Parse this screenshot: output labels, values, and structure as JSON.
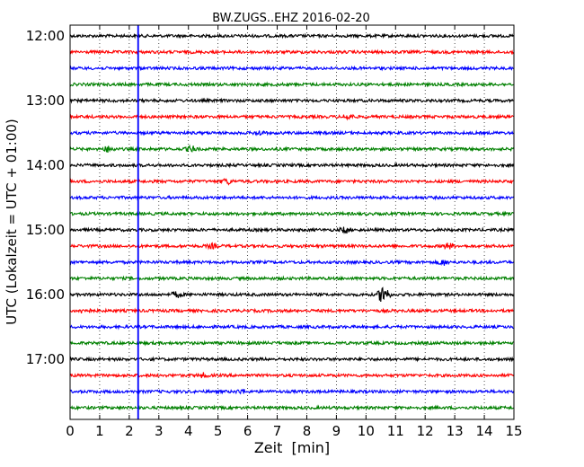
{
  "chart_data": {
    "type": "line",
    "title": "BW.ZUGS..EHZ 2016-02-20",
    "xlabel": "Zeit  [min]",
    "ylabel": "UTC (Lokalzeit = UTC + 01:00)",
    "xlim": [
      0,
      15
    ],
    "x_ticks": [
      "0",
      "1",
      "2",
      "3",
      "4",
      "5",
      "6",
      "7",
      "8",
      "9",
      "10",
      "11",
      "12",
      "13",
      "14",
      "15"
    ],
    "y_ticks": [
      "12:00",
      "13:00",
      "14:00",
      "15:00",
      "16:00",
      "17:00"
    ],
    "grid": "vertical-dotted",
    "trace_colors": [
      "#000000",
      "#ff0000",
      "#0000ff",
      "#008000"
    ],
    "traces_per_hour": 4,
    "trace_count": 24,
    "first_trace_time": "12:00",
    "trace_interval_min": 15,
    "marker_line": {
      "x_min": 2.3,
      "color": "#0000ff"
    },
    "events": [
      {
        "trace": 7,
        "x": 1.3,
        "amp": 3
      },
      {
        "trace": 7,
        "x": 4.1,
        "amp": 3
      },
      {
        "trace": 6,
        "x": 6.4,
        "amp": 2
      },
      {
        "trace": 5,
        "x": 9.4,
        "amp": 3
      },
      {
        "trace": 9,
        "x": 5.3,
        "amp": 3
      },
      {
        "trace": 12,
        "x": 9.3,
        "amp": 3
      },
      {
        "trace": 13,
        "x": 4.8,
        "amp": 2
      },
      {
        "trace": 13,
        "x": 12.8,
        "amp": 3
      },
      {
        "trace": 14,
        "x": 12.6,
        "amp": 3
      },
      {
        "trace": 16,
        "x": 3.6,
        "amp": 3
      },
      {
        "trace": 16,
        "x": 10.6,
        "amp": 12
      },
      {
        "trace": 17,
        "x": 0.5,
        "amp": 3
      },
      {
        "trace": 21,
        "x": 4.5,
        "amp": 2
      },
      {
        "trace": 22,
        "x": 5.8,
        "amp": 2
      }
    ]
  }
}
